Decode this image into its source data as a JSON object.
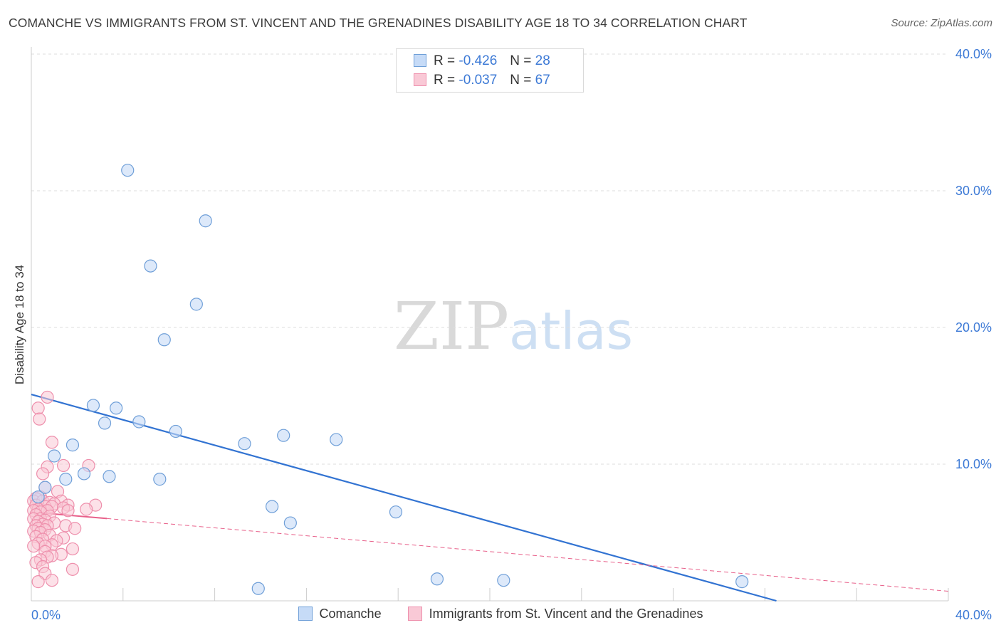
{
  "header": {
    "title": "COMANCHE VS IMMIGRANTS FROM ST. VINCENT AND THE GRENADINES DISABILITY AGE 18 TO 34 CORRELATION CHART",
    "source": "Source: ZipAtlas.com"
  },
  "watermark": {
    "zip": "ZIP",
    "atlas": "atlas"
  },
  "legend": {
    "r_label": "R =",
    "n_label": "N =",
    "series": [
      {
        "r": "-0.426",
        "n": "28"
      },
      {
        "r": "-0.037",
        "n": "67"
      }
    ]
  },
  "colors": {
    "comanche_fill": "#c6dbf7",
    "comanche_stroke": "#6f9fd8",
    "comanche_line": "#3273d2",
    "svg_fill": "#f9c9d6",
    "svg_stroke": "#ee8fac",
    "svg_line": "#e8608a",
    "tick_text": "#3d7ad6",
    "grid": "#dddddd"
  },
  "chart_data": {
    "type": "scatter",
    "title": "COMANCHE VS IMMIGRANTS FROM ST. VINCENT AND THE GRENADINES DISABILITY AGE 18 TO 34 CORRELATION CHART",
    "xlabel": "",
    "ylabel": "Disability Age 18 to 34",
    "xlim": [
      0,
      40
    ],
    "ylim": [
      0,
      40
    ],
    "x_tick_labels": [
      "0.0%",
      "40.0%"
    ],
    "y_ticks": [
      10,
      20,
      30,
      40
    ],
    "y_tick_labels": [
      "10.0%",
      "20.0%",
      "30.0%",
      "40.0%"
    ],
    "grid": true,
    "series": [
      {
        "name": "Comanche",
        "r": -0.426,
        "n": 28,
        "trend": {
          "x": [
            0,
            32.5
          ],
          "y": [
            15.1,
            0
          ]
        },
        "points": [
          [
            4.2,
            31.5
          ],
          [
            7.6,
            27.8
          ],
          [
            5.2,
            24.5
          ],
          [
            7.2,
            21.7
          ],
          [
            5.8,
            19.1
          ],
          [
            2.7,
            14.3
          ],
          [
            3.7,
            14.1
          ],
          [
            4.7,
            13.1
          ],
          [
            3.2,
            13.0
          ],
          [
            6.3,
            12.4
          ],
          [
            11.0,
            12.1
          ],
          [
            13.3,
            11.8
          ],
          [
            9.3,
            11.5
          ],
          [
            1.8,
            11.4
          ],
          [
            1.0,
            10.6
          ],
          [
            3.4,
            9.1
          ],
          [
            2.3,
            9.3
          ],
          [
            1.5,
            8.9
          ],
          [
            5.6,
            8.9
          ],
          [
            0.6,
            8.3
          ],
          [
            10.5,
            6.9
          ],
          [
            15.9,
            6.5
          ],
          [
            11.3,
            5.7
          ],
          [
            17.7,
            1.6
          ],
          [
            20.6,
            1.5
          ],
          [
            31.0,
            1.4
          ],
          [
            9.9,
            0.9
          ],
          [
            0.3,
            7.6
          ]
        ]
      },
      {
        "name": "Immigrants from St. Vincent and the Grenadines",
        "r": -0.037,
        "n": 67,
        "trend": {
          "x": [
            0,
            40
          ],
          "y": [
            6.5,
            0.7
          ]
        },
        "trend_solid_until": 3.3,
        "points": [
          [
            0.7,
            14.9
          ],
          [
            0.3,
            14.1
          ],
          [
            0.35,
            13.3
          ],
          [
            0.9,
            11.6
          ],
          [
            1.4,
            9.9
          ],
          [
            2.5,
            9.9
          ],
          [
            0.7,
            9.8
          ],
          [
            0.5,
            9.3
          ],
          [
            0.6,
            8.3
          ],
          [
            1.15,
            8.0
          ],
          [
            0.4,
            7.6
          ],
          [
            0.3,
            7.4
          ],
          [
            0.2,
            7.5
          ],
          [
            0.1,
            7.3
          ],
          [
            0.5,
            7.3
          ],
          [
            0.8,
            7.2
          ],
          [
            1.3,
            7.3
          ],
          [
            1.0,
            7.1
          ],
          [
            1.6,
            7.0
          ],
          [
            2.8,
            7.0
          ],
          [
            0.2,
            7.0
          ],
          [
            0.6,
            6.9
          ],
          [
            0.9,
            6.9
          ],
          [
            1.4,
            6.8
          ],
          [
            0.3,
            6.7
          ],
          [
            2.4,
            6.7
          ],
          [
            0.7,
            6.6
          ],
          [
            0.1,
            6.6
          ],
          [
            0.4,
            6.5
          ],
          [
            1.6,
            6.6
          ],
          [
            0.2,
            6.3
          ],
          [
            0.8,
            6.2
          ],
          [
            0.4,
            6.0
          ],
          [
            0.1,
            6.0
          ],
          [
            0.6,
            5.9
          ],
          [
            0.3,
            5.8
          ],
          [
            1.0,
            5.7
          ],
          [
            0.5,
            5.6
          ],
          [
            0.2,
            5.5
          ],
          [
            0.7,
            5.5
          ],
          [
            1.5,
            5.5
          ],
          [
            1.9,
            5.3
          ],
          [
            0.3,
            5.3
          ],
          [
            0.6,
            5.2
          ],
          [
            0.1,
            5.1
          ],
          [
            0.4,
            5.0
          ],
          [
            0.8,
            4.8
          ],
          [
            0.2,
            4.7
          ],
          [
            1.4,
            4.6
          ],
          [
            0.5,
            4.5
          ],
          [
            1.1,
            4.4
          ],
          [
            0.3,
            4.2
          ],
          [
            0.9,
            4.1
          ],
          [
            0.6,
            4.0
          ],
          [
            0.1,
            4.0
          ],
          [
            1.8,
            3.8
          ],
          [
            0.6,
            3.6
          ],
          [
            1.3,
            3.4
          ],
          [
            0.9,
            3.3
          ],
          [
            0.7,
            3.2
          ],
          [
            0.4,
            3.0
          ],
          [
            0.2,
            2.8
          ],
          [
            0.5,
            2.5
          ],
          [
            1.8,
            2.3
          ],
          [
            0.6,
            2.0
          ],
          [
            0.9,
            1.5
          ],
          [
            0.3,
            1.4
          ]
        ]
      }
    ]
  },
  "bottom_legend": {
    "items": [
      "Comanche",
      "Immigrants from St. Vincent and the Grenadines"
    ]
  }
}
